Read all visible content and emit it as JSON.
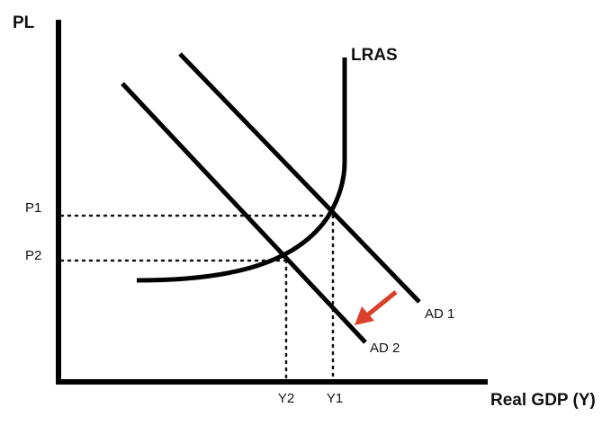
{
  "axes": {
    "y_label": "PL",
    "x_label": "Real GDP (Y)"
  },
  "curves": {
    "lras": "LRAS",
    "ad1": "AD 1",
    "ad2": "AD 2"
  },
  "ticks": {
    "p1": "P1",
    "p2": "P2",
    "y1": "Y1",
    "y2": "Y2"
  }
}
